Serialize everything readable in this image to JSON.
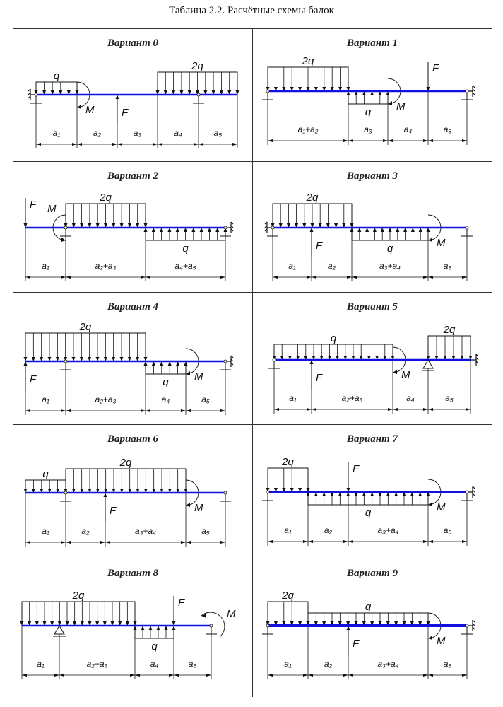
{
  "title": "Таблица 2.2. Расчётные схемы балок",
  "colors": {
    "beam": "#1010e0",
    "line": "#111111"
  },
  "variants": [
    {
      "title": "Вариант 0",
      "dims": [
        "a₁",
        "a₂",
        "a₃",
        "a₄",
        "a₅"
      ],
      "loads": [
        "q",
        "M",
        "F",
        "2q"
      ]
    },
    {
      "title": "Вариант 1",
      "dims": [
        "a₁+a₂",
        "a₃",
        "a₄",
        "a₅"
      ],
      "loads": [
        "2q",
        "q",
        "M",
        "F"
      ]
    },
    {
      "title": "Вариант 2",
      "dims": [
        "a₁",
        "a₂+a₃",
        "a₄+a₅"
      ],
      "loads": [
        "F",
        "M",
        "2q",
        "q"
      ]
    },
    {
      "title": "Вариант 3",
      "dims": [
        "a₁",
        "a₂",
        "a₃+a₄",
        "a₅"
      ],
      "loads": [
        "2q",
        "F",
        "q",
        "M"
      ]
    },
    {
      "title": "Вариант 4",
      "dims": [
        "a₁",
        "a₂+a₃",
        "a₄",
        "a₅"
      ],
      "loads": [
        "2q",
        "F",
        "q",
        "M"
      ]
    },
    {
      "title": "Вариант 5",
      "dims": [
        "a₁",
        "a₂+a₃",
        "a₄",
        "a₅"
      ],
      "loads": [
        "q",
        "F",
        "M",
        "2q"
      ]
    },
    {
      "title": "Вариант 6",
      "dims": [
        "a₁",
        "a₂",
        "a₃+a₄",
        "a₅"
      ],
      "loads": [
        "q",
        "2q",
        "F",
        "M"
      ]
    },
    {
      "title": "Вариант 7",
      "dims": [
        "a₁",
        "a₂",
        "a₃+a₄",
        "a₅"
      ],
      "loads": [
        "2q",
        "F",
        "q",
        "M"
      ]
    },
    {
      "title": "Вариант 8",
      "dims": [
        "a₁",
        "a₂+a₃",
        "a₄",
        "a₅"
      ],
      "loads": [
        "2q",
        "q",
        "F",
        "M"
      ]
    },
    {
      "title": "Вариант 9",
      "dims": [
        "a₁",
        "a₂",
        "a₃+a₄",
        "a₅"
      ],
      "loads": [
        "2q",
        "q",
        "F",
        "M"
      ]
    }
  ]
}
